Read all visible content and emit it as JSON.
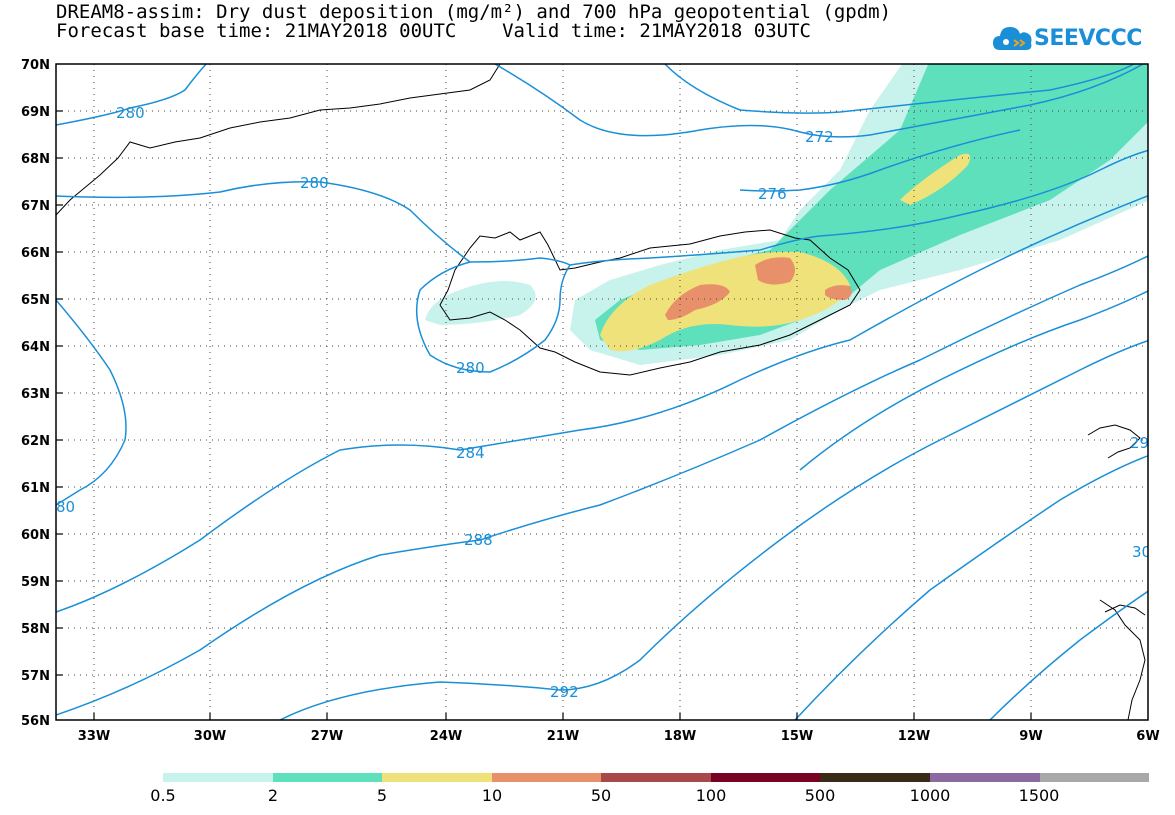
{
  "header": {
    "title_line1": "DREAM8-assim: Dry dust deposition (mg/m²) and 700 hPa geopotential (gpdm)",
    "title_line2": "Forecast base time: 21MAY2018 00UTC    Valid time: 21MAY2018 03UTC"
  },
  "logo": {
    "text": "SEEVCCC",
    "icon": "cloud-icon",
    "color": "#1a8fd8"
  },
  "map": {
    "lon_labels": [
      "33W",
      "30W",
      "27W",
      "24W",
      "21W",
      "18W",
      "15W",
      "12W",
      "9W",
      "6W"
    ],
    "lat_labels": [
      "70N",
      "69N",
      "68N",
      "67N",
      "66N",
      "65N",
      "64N",
      "63N",
      "62N",
      "61N",
      "60N",
      "59N",
      "58N",
      "57N",
      "56N"
    ],
    "contour_labels": [
      "280",
      "280",
      "280",
      "272",
      "276",
      "284",
      "288",
      "292",
      "80",
      "29",
      "30"
    ],
    "contour_color": "#1a8fd8",
    "coast_color": "#000000"
  },
  "legend": {
    "labels": [
      "0.5",
      "2",
      "5",
      "10",
      "50",
      "100",
      "500",
      "1000",
      "1500"
    ],
    "colors": [
      "#c8f2ec",
      "#5ee0bc",
      "#f0e27a",
      "#e8906a",
      "#a84848",
      "#780020",
      "#3a2a18",
      "#8a6aa0",
      "#a8a8a8"
    ]
  }
}
